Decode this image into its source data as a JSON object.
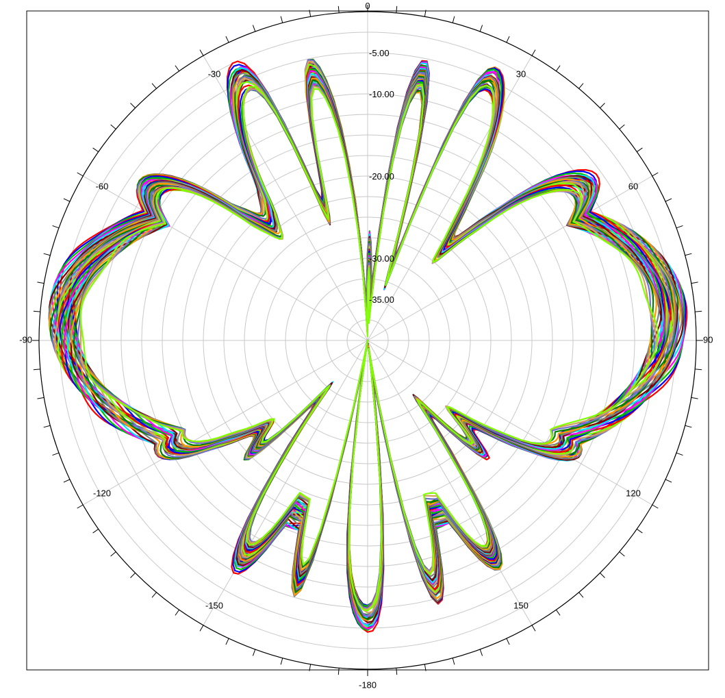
{
  "chart_data": {
    "type": "polar-line",
    "title": "",
    "angular_axis": {
      "zero_at": "top",
      "direction": "clockwise",
      "range": [
        -180,
        180
      ],
      "labels": [
        "0",
        "30",
        "60",
        "90",
        "120",
        "150",
        "-180",
        "-150",
        "-120",
        "-90",
        "-60",
        "-30"
      ],
      "label_angles": [
        0,
        30,
        60,
        90,
        120,
        150,
        180,
        210,
        240,
        270,
        300,
        330
      ],
      "major_tick_step_deg": 5,
      "tick_marks": "outside"
    },
    "radial_axis": {
      "range": [
        -40,
        0
      ],
      "ring_step": 2.5,
      "labels": [
        "-5.00",
        "-10.00",
        "-20.00",
        "-30.00",
        "-35.00"
      ],
      "label_values": [
        -5,
        -10,
        -20,
        -30,
        -35
      ],
      "grid": true
    },
    "grid_color": "#c8c8c8",
    "legend": "none",
    "series_colors": [
      "#ff0000",
      "#0000ff",
      "#00c000",
      "#ff00ff",
      "#00e5ff",
      "#800000",
      "#808080",
      "#ff9900",
      "#008000",
      "#7070d0",
      "#d2a060",
      "#7fff00"
    ],
    "bundle_shape": {
      "lobes": [
        {
          "center_deg": -85,
          "width_deg": 42,
          "peak_db": -1.5
        },
        {
          "center_deg": 85,
          "width_deg": 42,
          "peak_db": -1.5
        },
        {
          "center_deg": -55,
          "width_deg": 14,
          "peak_db": -6
        },
        {
          "center_deg": 55,
          "width_deg": 14,
          "peak_db": -6
        },
        {
          "center_deg": -25,
          "width_deg": 12,
          "peak_db": -3
        },
        {
          "center_deg": 25,
          "width_deg": 12,
          "peak_db": -3
        },
        {
          "center_deg": -12,
          "width_deg": 8,
          "peak_db": -5
        },
        {
          "center_deg": 12,
          "width_deg": 8,
          "peak_db": -5
        },
        {
          "center_deg": -118,
          "width_deg": 14,
          "peak_db": -11
        },
        {
          "center_deg": 118,
          "width_deg": 14,
          "peak_db": -11
        },
        {
          "center_deg": -150,
          "width_deg": 9,
          "peak_db": -8
        },
        {
          "center_deg": 150,
          "width_deg": 9,
          "peak_db": -8
        },
        {
          "center_deg": -165,
          "width_deg": 7,
          "peak_db": -7
        },
        {
          "center_deg": 165,
          "width_deg": 7,
          "peak_db": -7
        },
        {
          "center_deg": 180,
          "width_deg": 10,
          "peak_db": -4.5
        }
      ],
      "nulls": [
        {
          "center_deg": -2,
          "width_deg": 3,
          "depth_db": -36
        },
        {
          "center_deg": 4,
          "width_deg": 3,
          "depth_db": -34
        },
        {
          "center_deg": 18,
          "width_deg": 3,
          "depth_db": -30
        },
        {
          "center_deg": -18,
          "width_deg": 3,
          "depth_db": -22
        },
        {
          "center_deg": -40,
          "width_deg": 4,
          "depth_db": -20
        },
        {
          "center_deg": 40,
          "width_deg": 4,
          "depth_db": -24
        },
        {
          "center_deg": -170,
          "width_deg": 3,
          "depth_db": -38
        },
        {
          "center_deg": 172,
          "width_deg": 3,
          "depth_db": -36
        },
        {
          "center_deg": -140,
          "width_deg": 4,
          "depth_db": -30
        },
        {
          "center_deg": 140,
          "width_deg": 4,
          "depth_db": -28
        },
        {
          "center_deg": 130,
          "width_deg": 4,
          "depth_db": -24
        },
        {
          "center_deg": -130,
          "width_deg": 4,
          "depth_db": -22
        }
      ],
      "floor_db": -16,
      "curve_count": 48,
      "spread_db": 3.2
    }
  }
}
